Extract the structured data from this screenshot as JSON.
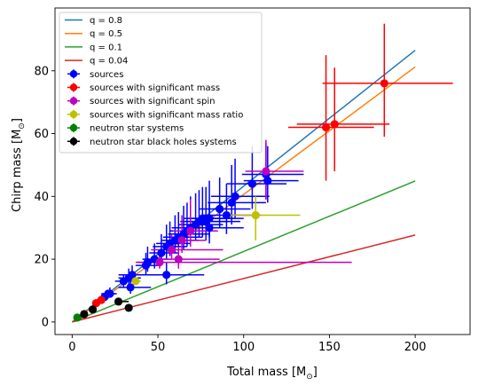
{
  "chart_data": {
    "type": "scatter",
    "xlabel": "Total mass [$M_\\odot$]",
    "ylabel": "Chirp mass [$M_\\odot$]",
    "xlabel_text": "Total mass [M",
    "xlabel_sub": "⊙",
    "xlabel_end": "]",
    "ylabel_text": "Chirp mass [M",
    "ylabel_sub": "⊙",
    "ylabel_end": "]",
    "xlim": [
      -10,
      232
    ],
    "ylim": [
      -4,
      100
    ],
    "xticks": [
      0,
      50,
      100,
      150,
      200
    ],
    "yticks": [
      0,
      20,
      40,
      60,
      80
    ],
    "grid": false,
    "legend_position": "upper left",
    "lines": [
      {
        "label": "q = 0.8",
        "color": "#1f77b4",
        "slope": 0.4326
      },
      {
        "label": "q = 0.5",
        "color": "#ff7f0e",
        "slope": 0.4061
      },
      {
        "label": "q = 0.1",
        "color": "#2ca02c",
        "slope": 0.2245
      },
      {
        "label": "q = 0.04",
        "color": "#d62728",
        "slope": 0.1384
      }
    ],
    "series": [
      {
        "name": "sources",
        "color": "#0000ff",
        "points": [
          {
            "x": 19,
            "y": 8,
            "xerr": [
              3,
              3
            ],
            "yerr": [
              1,
              1
            ]
          },
          {
            "x": 21,
            "y": 9,
            "xerr": [
              4,
              4
            ],
            "yerr": [
              1,
              1
            ]
          },
          {
            "x": 22,
            "y": 9,
            "xerr": [
              4,
              4
            ],
            "yerr": [
              1,
              2
            ]
          },
          {
            "x": 30,
            "y": 13,
            "xerr": [
              5,
              6
            ],
            "yerr": [
              2,
              2
            ]
          },
          {
            "x": 33,
            "y": 14,
            "xerr": [
              6,
              7
            ],
            "yerr": [
              2,
              3
            ]
          },
          {
            "x": 34,
            "y": 11,
            "xerr": [
              7,
              12
            ],
            "yerr": [
              2,
              2
            ]
          },
          {
            "x": 35,
            "y": 15,
            "xerr": [
              5,
              6
            ],
            "yerr": [
              2,
              3
            ]
          },
          {
            "x": 43,
            "y": 18,
            "xerr": [
              6,
              8
            ],
            "yerr": [
              3,
              4
            ]
          },
          {
            "x": 44,
            "y": 19,
            "xerr": [
              6,
              9
            ],
            "yerr": [
              3,
              5
            ]
          },
          {
            "x": 48,
            "y": 20,
            "xerr": [
              7,
              9
            ],
            "yerr": [
              3,
              5
            ]
          },
          {
            "x": 52,
            "y": 22,
            "xerr": [
              7,
              10
            ],
            "yerr": [
              3,
              6
            ]
          },
          {
            "x": 55,
            "y": 15,
            "xerr": [
              28,
              22
            ],
            "yerr": [
              3,
              4
            ]
          },
          {
            "x": 55,
            "y": 24,
            "xerr": [
              8,
              12
            ],
            "yerr": [
              4,
              7
            ]
          },
          {
            "x": 57,
            "y": 25,
            "xerr": [
              8,
              12
            ],
            "yerr": [
              4,
              7
            ]
          },
          {
            "x": 60,
            "y": 26,
            "xerr": [
              8,
              14
            ],
            "yerr": [
              4,
              8
            ]
          },
          {
            "x": 62,
            "y": 27,
            "xerr": [
              9,
              14
            ],
            "yerr": [
              4,
              8
            ]
          },
          {
            "x": 65,
            "y": 28,
            "xerr": [
              9,
              15
            ],
            "yerr": [
              5,
              9
            ]
          },
          {
            "x": 67,
            "y": 29,
            "xerr": [
              10,
              14
            ],
            "yerr": [
              5,
              9
            ]
          },
          {
            "x": 69,
            "y": 30,
            "xerr": [
              10,
              15
            ],
            "yerr": [
              5,
              10
            ]
          },
          {
            "x": 72,
            "y": 31,
            "xerr": [
              10,
              16
            ],
            "yerr": [
              5,
              10
            ]
          },
          {
            "x": 74,
            "y": 32,
            "xerr": [
              11,
              17
            ],
            "yerr": [
              5,
              10
            ]
          },
          {
            "x": 76,
            "y": 33,
            "xerr": [
              11,
              18
            ],
            "yerr": [
              6,
              10
            ]
          },
          {
            "x": 78,
            "y": 32,
            "xerr": [
              12,
              20
            ],
            "yerr": [
              6,
              11
            ]
          },
          {
            "x": 80,
            "y": 33,
            "xerr": [
              12,
              20
            ],
            "yerr": [
              6,
              12
            ]
          },
          {
            "x": 80,
            "y": 30,
            "xerr": [
              22,
              20
            ],
            "yerr": [
              5,
              8
            ]
          },
          {
            "x": 86,
            "y": 36,
            "xerr": [
              12,
              18
            ],
            "yerr": [
              6,
              10
            ]
          },
          {
            "x": 90,
            "y": 34,
            "xerr": [
              14,
              20
            ],
            "yerr": [
              6,
              10
            ]
          },
          {
            "x": 93,
            "y": 38,
            "xerr": [
              14,
              20
            ],
            "yerr": [
              7,
              12
            ]
          },
          {
            "x": 95,
            "y": 40,
            "xerr": [
              14,
              20
            ],
            "yerr": [
              7,
              12
            ]
          },
          {
            "x": 105,
            "y": 44,
            "xerr": [
              15,
              20
            ],
            "yerr": [
              8,
              12
            ]
          },
          {
            "x": 113,
            "y": 47,
            "xerr": [
              14,
              22
            ],
            "yerr": [
              8,
              10
            ]
          },
          {
            "x": 114,
            "y": 45,
            "xerr": [
              14,
              18
            ],
            "yerr": [
              7,
              11
            ]
          }
        ]
      },
      {
        "name": "sources with significant mass",
        "color": "#ff0000",
        "points": [
          {
            "x": 14,
            "y": 6,
            "xerr": [
              2,
              2
            ],
            "yerr": [
              1,
              1
            ]
          },
          {
            "x": 17,
            "y": 7,
            "xerr": [
              2,
              2
            ],
            "yerr": [
              1,
              1
            ]
          },
          {
            "x": 148,
            "y": 62,
            "xerr": [
              22,
              28
            ],
            "yerr": [
              17,
              23
            ]
          },
          {
            "x": 153,
            "y": 63,
            "xerr": [
              22,
              32
            ],
            "yerr": [
              15,
              18
            ]
          },
          {
            "x": 182,
            "y": 76,
            "xerr": [
              36,
              40
            ],
            "yerr": [
              17,
              19
            ]
          }
        ]
      },
      {
        "name": "sources with significant spin",
        "color": "#bf00bf",
        "points": [
          {
            "x": 51,
            "y": 19,
            "xerr": [
              14,
              112
            ],
            "yerr": [
              2,
              2
            ]
          },
          {
            "x": 58,
            "y": 23,
            "xerr": [
              12,
              30
            ],
            "yerr": [
              3,
              5
            ]
          },
          {
            "x": 62,
            "y": 20,
            "xerr": [
              10,
              24
            ],
            "yerr": [
              3,
              4
            ]
          },
          {
            "x": 64,
            "y": 26,
            "xerr": [
              8,
              14
            ],
            "yerr": [
              4,
              8
            ]
          },
          {
            "x": 69,
            "y": 29,
            "xerr": [
              10,
              16
            ],
            "yerr": [
              5,
              10
            ]
          },
          {
            "x": 113,
            "y": 48,
            "xerr": [
              12,
              22
            ],
            "yerr": [
              9,
              10
            ]
          }
        ]
      },
      {
        "name": "sources with significant mass ratio",
        "color": "#bfbf00",
        "points": [
          {
            "x": 37,
            "y": 13,
            "xerr": [
              2,
              3
            ],
            "yerr": [
              1,
              1
            ]
          },
          {
            "x": 107,
            "y": 34,
            "xerr": [
              15,
              26
            ],
            "yerr": [
              8,
              6
            ]
          }
        ]
      },
      {
        "name": "neutron star systems",
        "color": "#008000",
        "points": [
          {
            "x": 3,
            "y": 1.4,
            "xerr": [
              0.3,
              0.3
            ],
            "yerr": [
              0.2,
              0.2
            ]
          }
        ]
      },
      {
        "name": "neutron star black holes systems",
        "color": "#000000",
        "points": [
          {
            "x": 7,
            "y": 2.5,
            "xerr": [
              1,
              1
            ],
            "yerr": [
              0.5,
              0.5
            ]
          },
          {
            "x": 12,
            "y": 4,
            "xerr": [
              1,
              1
            ],
            "yerr": [
              0.5,
              0.5
            ]
          },
          {
            "x": 27,
            "y": 6.5,
            "xerr": [
              2,
              6
            ],
            "yerr": [
              0.7,
              0.7
            ]
          },
          {
            "x": 33,
            "y": 4.5,
            "xerr": [
              2,
              2
            ],
            "yerr": [
              0.5,
              0.5
            ]
          }
        ]
      }
    ]
  }
}
